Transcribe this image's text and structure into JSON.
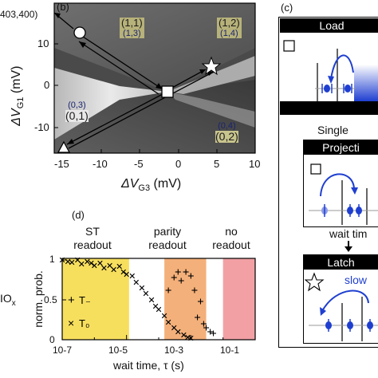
{
  "panel_b": {
    "panel_label": "(b)",
    "corner_text": "403,400)",
    "xlabel_main": "ΔV",
    "xlabel_sub": "G3",
    "xlabel_unit": " (mV)",
    "ylabel_main": "ΔV",
    "ylabel_sub": "G1",
    "ylabel_unit": " (mV)",
    "xticks": [
      "-15",
      "-10",
      "-5",
      "0",
      "5",
      "10"
    ],
    "yticks": [
      "10",
      "0",
      "-10"
    ],
    "regions": [
      {
        "big": "(1,1)",
        "small": "(1,3)",
        "bg": "#b7b27a",
        "color": "#1b2470"
      },
      {
        "big": "(1,2)",
        "small": "(1,4)",
        "bg": "#b7b27a",
        "color": "#1b2470"
      },
      {
        "big": "(0,1)",
        "small": "(0,3)",
        "bg": "#e8e8e8",
        "color": "#1b2470"
      },
      {
        "big": "(0,2)",
        "small": "(0,4)",
        "bg": "#9aa2b6",
        "color": "#1b2470"
      }
    ]
  },
  "panel_c": {
    "panel_label": "(c)",
    "load_title": "Load",
    "single_text": "Single",
    "projection_title": "Projecti",
    "wait_text": "wait tim",
    "latch_title": "Latch",
    "slow_text": "slow"
  },
  "panel_d": {
    "panel_label": "(d)",
    "left_label": "IO",
    "left_label_sub": "x",
    "chart_data": {
      "type": "scatter",
      "xscale": "log",
      "xlim": [
        1e-07,
        0.1
      ],
      "ylim": [
        0,
        1
      ],
      "xlabel": "wait time, τ (s)",
      "ylabel": "norm. prob.",
      "xtick_labels": [
        "10-7",
        "10-5",
        "10-3",
        "10-1"
      ],
      "ytick_labels": [
        "0",
        "0.5",
        "1"
      ],
      "regions": [
        {
          "label_lines": [
            "ST",
            "readout"
          ],
          "x_from": 1e-07,
          "x_to": 1.2e-05,
          "color": "#f7df5e"
        },
        {
          "label_lines": [
            "parity",
            "readout"
          ],
          "x_from": 0.00015,
          "x_to": 0.003,
          "color": "#f4b07a"
        },
        {
          "label_lines": [
            "no",
            "readout"
          ],
          "x_from": 0.01,
          "x_to": 0.1,
          "color": "#f2a0a4"
        }
      ],
      "series": [
        {
          "name": "T₋",
          "marker": "+",
          "x": [
            0.0002,
            0.0003,
            0.0004,
            0.0005,
            0.0007,
            0.001,
            0.0013,
            0.0016,
            0.002,
            0.0025,
            0.003,
            0.004,
            0.005
          ],
          "y": [
            0.62,
            0.78,
            0.85,
            0.74,
            0.85,
            0.8,
            0.62,
            0.28,
            0.48,
            0.2,
            0.15,
            0.1,
            0.08
          ]
        },
        {
          "name": "T₀",
          "marker": "×",
          "x": [
            1e-07,
            1.5e-07,
            2e-07,
            3e-07,
            4e-07,
            6e-07,
            8e-07,
            1e-06,
            1.5e-06,
            2e-06,
            3e-06,
            4e-06,
            6e-06,
            8e-06,
            1e-05,
            1.5e-05,
            2e-05,
            3e-05,
            4e-05,
            6e-05,
            8e-05,
            0.0001,
            0.00015,
            0.0002,
            0.0003,
            0.0004,
            0.0006,
            0.0008,
            0.001
          ],
          "y": [
            1.0,
            0.98,
            0.97,
            1.0,
            0.95,
            0.98,
            0.96,
            0.93,
            0.96,
            0.9,
            0.93,
            0.88,
            0.92,
            0.85,
            0.82,
            0.8,
            0.72,
            0.65,
            0.58,
            0.5,
            0.42,
            0.38,
            0.3,
            0.22,
            0.15,
            0.1,
            0.06,
            0.03,
            0.02
          ]
        }
      ]
    }
  }
}
